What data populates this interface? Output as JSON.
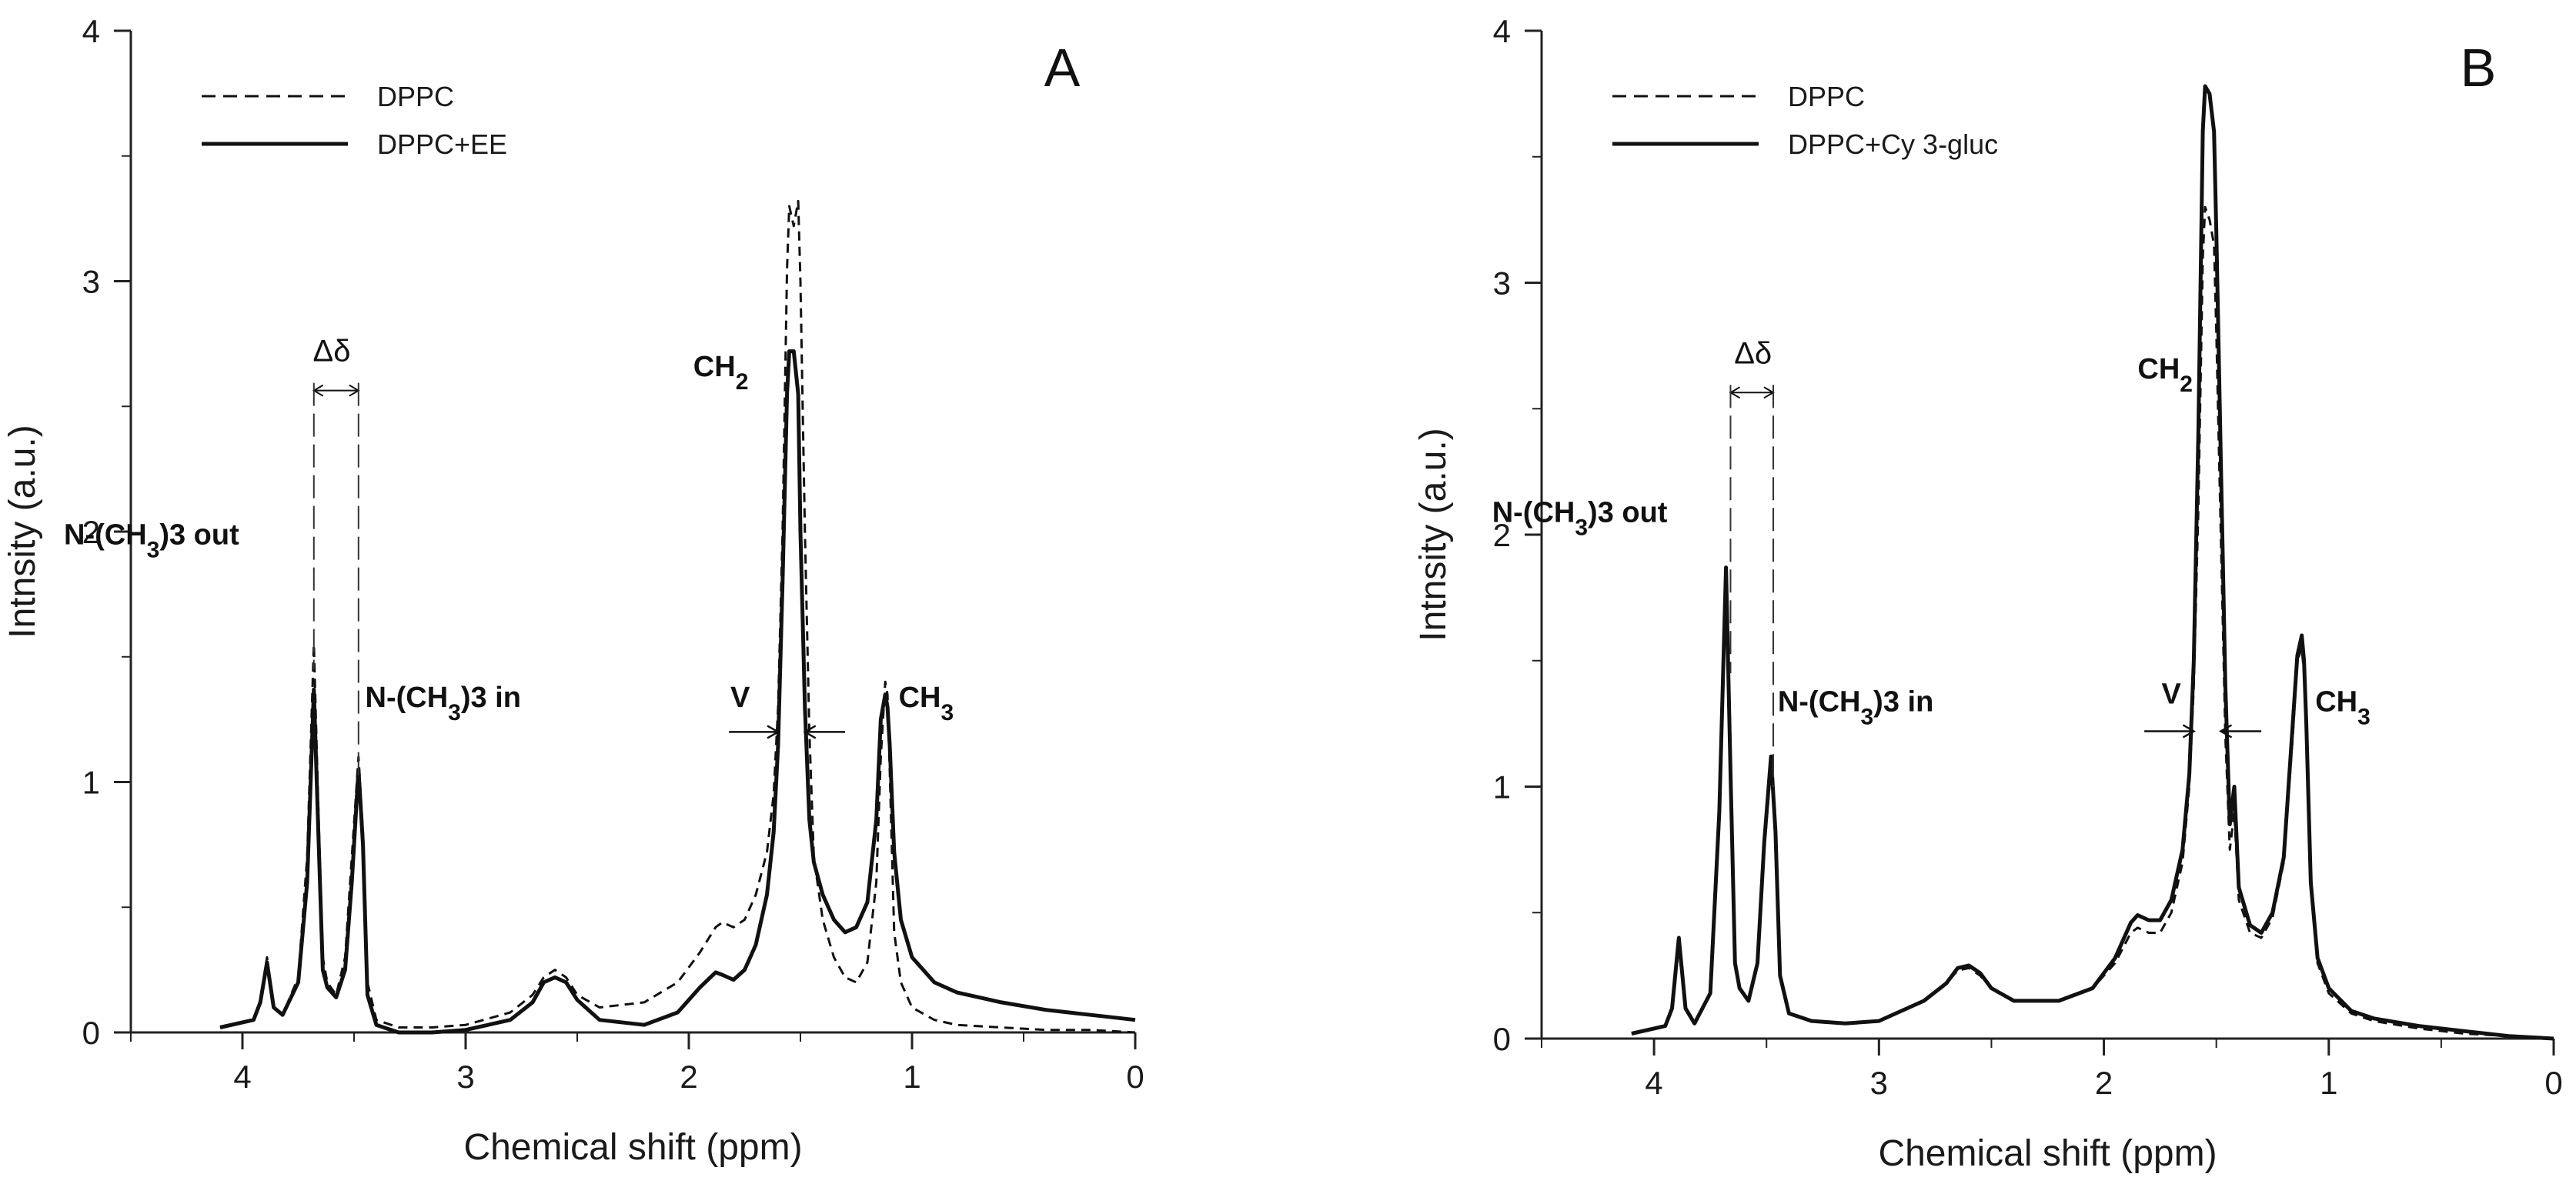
{
  "chart_data": [
    {
      "type": "line",
      "panel_label": "A",
      "title": "",
      "xlabel": "Chemical shift (ppm)",
      "ylabel": "Intnsity (a.u.)",
      "xlim": [
        4.5,
        0
      ],
      "ylim": [
        0,
        4
      ],
      "x_ticks": [
        "4",
        "3",
        "2",
        "1",
        "0"
      ],
      "y_ticks": [
        "0",
        "1",
        "2",
        "3",
        "4"
      ],
      "legend_position": "top-left",
      "series": [
        {
          "name": "DPPC",
          "style": "dashed",
          "color": "#111111",
          "x": [
            4.1,
            3.95,
            3.92,
            3.89,
            3.86,
            3.82,
            3.75,
            3.71,
            3.68,
            3.66,
            3.64,
            3.62,
            3.58,
            3.54,
            3.51,
            3.48,
            3.46,
            3.44,
            3.4,
            3.3,
            3.15,
            3.0,
            2.8,
            2.7,
            2.65,
            2.6,
            2.55,
            2.5,
            2.4,
            2.2,
            2.05,
            1.95,
            1.88,
            1.85,
            1.8,
            1.75,
            1.7,
            1.65,
            1.62,
            1.6,
            1.58,
            1.56,
            1.55,
            1.53,
            1.51,
            1.5,
            1.48,
            1.46,
            1.44,
            1.4,
            1.35,
            1.3,
            1.25,
            1.2,
            1.16,
            1.14,
            1.12,
            1.11,
            1.1,
            1.08,
            1.05,
            1.0,
            0.9,
            0.8,
            0.6,
            0.4,
            0.2,
            0.0
          ],
          "y": [
            0.02,
            0.05,
            0.12,
            0.3,
            0.1,
            0.07,
            0.22,
            0.7,
            1.55,
            0.9,
            0.3,
            0.2,
            0.15,
            0.3,
            0.7,
            1.1,
            0.8,
            0.2,
            0.05,
            0.02,
            0.02,
            0.03,
            0.08,
            0.15,
            0.22,
            0.25,
            0.22,
            0.15,
            0.1,
            0.12,
            0.2,
            0.32,
            0.42,
            0.44,
            0.42,
            0.45,
            0.55,
            0.72,
            0.95,
            1.3,
            2.0,
            3.05,
            3.3,
            3.22,
            3.32,
            3.0,
            2.0,
            1.2,
            0.7,
            0.45,
            0.3,
            0.22,
            0.2,
            0.28,
            0.6,
            1.1,
            1.4,
            1.35,
            1.05,
            0.4,
            0.2,
            0.1,
            0.05,
            0.03,
            0.02,
            0.01,
            0.01,
            0.0
          ]
        },
        {
          "name": "DPPC+EE",
          "style": "solid",
          "color": "#111111",
          "x": [
            4.1,
            3.95,
            3.92,
            3.89,
            3.86,
            3.82,
            3.75,
            3.71,
            3.68,
            3.66,
            3.64,
            3.62,
            3.58,
            3.54,
            3.51,
            3.48,
            3.46,
            3.44,
            3.4,
            3.3,
            3.15,
            3.0,
            2.8,
            2.7,
            2.65,
            2.6,
            2.55,
            2.5,
            2.4,
            2.2,
            2.05,
            1.95,
            1.88,
            1.85,
            1.8,
            1.75,
            1.7,
            1.65,
            1.62,
            1.6,
            1.58,
            1.56,
            1.55,
            1.53,
            1.51,
            1.5,
            1.48,
            1.46,
            1.44,
            1.4,
            1.35,
            1.3,
            1.25,
            1.2,
            1.16,
            1.14,
            1.12,
            1.11,
            1.1,
            1.08,
            1.05,
            1.0,
            0.9,
            0.8,
            0.6,
            0.4,
            0.2,
            0.0
          ],
          "y": [
            0.02,
            0.05,
            0.12,
            0.28,
            0.1,
            0.07,
            0.2,
            0.6,
            1.37,
            0.8,
            0.25,
            0.18,
            0.14,
            0.25,
            0.6,
            1.05,
            0.75,
            0.15,
            0.03,
            0.0,
            0.0,
            0.01,
            0.05,
            0.12,
            0.2,
            0.22,
            0.2,
            0.13,
            0.05,
            0.03,
            0.08,
            0.18,
            0.24,
            0.23,
            0.21,
            0.25,
            0.35,
            0.55,
            0.8,
            1.15,
            1.8,
            2.55,
            2.72,
            2.72,
            2.55,
            2.0,
            1.3,
            0.85,
            0.68,
            0.55,
            0.45,
            0.4,
            0.42,
            0.52,
            0.85,
            1.25,
            1.35,
            1.3,
            1.15,
            0.72,
            0.45,
            0.3,
            0.2,
            0.16,
            0.12,
            0.09,
            0.07,
            0.05
          ]
        }
      ],
      "annotations": {
        "n_out": {
          "label": "N-(CH3)3 out",
          "x": 4.8,
          "y": 1.95
        },
        "n_in": {
          "label": "N-(CH3)3 in",
          "x": 3.45,
          "y": 1.3
        },
        "ch2": {
          "label": "CH2",
          "x": 1.98,
          "y": 2.62
        },
        "ch3": {
          "label": "CH3",
          "x": 1.06,
          "y": 1.3
        },
        "v": {
          "label": "V",
          "x": 1.77,
          "y": 1.3
        },
        "delta": {
          "label": "Δδ",
          "x": 3.6,
          "y": 2.68
        },
        "delta_lines_x": [
          3.68,
          3.48
        ],
        "arrow_y": 1.2
      }
    },
    {
      "type": "line",
      "panel_label": "B",
      "title": "",
      "xlabel": "Chemical shift (ppm)",
      "ylabel": "Intnsity (a.u.)",
      "xlim": [
        4.5,
        0
      ],
      "ylim": [
        0,
        4
      ],
      "x_ticks": [
        "4",
        "3",
        "2",
        "1",
        "0"
      ],
      "y_ticks": [
        "0",
        "1",
        "2",
        "3",
        "4"
      ],
      "legend_position": "top-left",
      "series": [
        {
          "name": "DPPC",
          "style": "dashed",
          "color": "#111111",
          "x": [
            4.1,
            3.95,
            3.92,
            3.89,
            3.86,
            3.82,
            3.75,
            3.71,
            3.68,
            3.66,
            3.64,
            3.62,
            3.58,
            3.54,
            3.51,
            3.48,
            3.46,
            3.44,
            3.4,
            3.3,
            3.15,
            3.0,
            2.8,
            2.7,
            2.65,
            2.6,
            2.55,
            2.5,
            2.4,
            2.2,
            2.05,
            1.95,
            1.88,
            1.85,
            1.8,
            1.75,
            1.7,
            1.65,
            1.62,
            1.6,
            1.58,
            1.56,
            1.55,
            1.53,
            1.51,
            1.5,
            1.48,
            1.46,
            1.44,
            1.42,
            1.4,
            1.35,
            1.3,
            1.25,
            1.2,
            1.16,
            1.14,
            1.12,
            1.11,
            1.1,
            1.08,
            1.05,
            1.0,
            0.9,
            0.8,
            0.6,
            0.4,
            0.2,
            0.0
          ],
          "y": [
            0.02,
            0.05,
            0.12,
            0.36,
            0.12,
            0.06,
            0.18,
            0.85,
            1.82,
            1.0,
            0.3,
            0.2,
            0.15,
            0.3,
            0.75,
            1.08,
            0.8,
            0.25,
            0.1,
            0.07,
            0.06,
            0.07,
            0.15,
            0.22,
            0.27,
            0.28,
            0.25,
            0.2,
            0.15,
            0.15,
            0.2,
            0.3,
            0.42,
            0.44,
            0.42,
            0.42,
            0.5,
            0.7,
            1.0,
            1.4,
            2.1,
            3.1,
            3.3,
            3.25,
            3.15,
            2.8,
            2.0,
            1.2,
            0.75,
            0.9,
            0.55,
            0.42,
            0.4,
            0.48,
            0.7,
            1.2,
            1.5,
            1.55,
            1.45,
            1.2,
            0.6,
            0.3,
            0.18,
            0.1,
            0.07,
            0.04,
            0.02,
            0.01,
            0.0
          ]
        },
        {
          "name": "DPPC+Cy 3-gluc",
          "style": "solid",
          "color": "#111111",
          "x": [
            4.1,
            3.95,
            3.92,
            3.89,
            3.86,
            3.82,
            3.75,
            3.71,
            3.68,
            3.66,
            3.64,
            3.62,
            3.58,
            3.54,
            3.51,
            3.48,
            3.46,
            3.44,
            3.4,
            3.3,
            3.15,
            3.0,
            2.8,
            2.7,
            2.65,
            2.6,
            2.55,
            2.5,
            2.4,
            2.2,
            2.05,
            1.95,
            1.88,
            1.85,
            1.8,
            1.75,
            1.7,
            1.65,
            1.62,
            1.6,
            1.58,
            1.56,
            1.55,
            1.53,
            1.51,
            1.5,
            1.48,
            1.46,
            1.44,
            1.42,
            1.4,
            1.35,
            1.3,
            1.25,
            1.2,
            1.16,
            1.14,
            1.12,
            1.11,
            1.1,
            1.08,
            1.05,
            1.0,
            0.9,
            0.8,
            0.6,
            0.4,
            0.2,
            0.0
          ],
          "y": [
            0.02,
            0.05,
            0.12,
            0.4,
            0.12,
            0.06,
            0.18,
            0.9,
            1.87,
            1.05,
            0.3,
            0.2,
            0.15,
            0.3,
            0.78,
            1.12,
            0.82,
            0.25,
            0.1,
            0.07,
            0.06,
            0.07,
            0.15,
            0.22,
            0.28,
            0.29,
            0.26,
            0.2,
            0.15,
            0.15,
            0.2,
            0.32,
            0.46,
            0.49,
            0.47,
            0.47,
            0.55,
            0.75,
            1.05,
            1.5,
            2.4,
            3.6,
            3.78,
            3.75,
            3.6,
            3.2,
            2.3,
            1.4,
            0.85,
            1.0,
            0.6,
            0.45,
            0.42,
            0.5,
            0.72,
            1.25,
            1.52,
            1.6,
            1.5,
            1.25,
            0.62,
            0.32,
            0.2,
            0.11,
            0.08,
            0.05,
            0.03,
            0.01,
            0.0
          ]
        }
      ],
      "annotations": {
        "n_out": {
          "label": "N-(CH3)3 out",
          "x": 4.72,
          "y": 2.05
        },
        "n_in": {
          "label": "N-(CH3)3 in",
          "x": 3.45,
          "y": 1.3
        },
        "ch2": {
          "label": "CH2",
          "x": 1.85,
          "y": 2.62
        },
        "ch3": {
          "label": "CH3",
          "x": 1.06,
          "y": 1.3
        },
        "v": {
          "label": "V",
          "x": 1.7,
          "y": 1.33
        },
        "delta": {
          "label": "Δδ",
          "x": 3.56,
          "y": 2.68
        },
        "delta_lines_x": [
          3.66,
          3.47
        ],
        "arrow_y": 1.22
      }
    }
  ]
}
